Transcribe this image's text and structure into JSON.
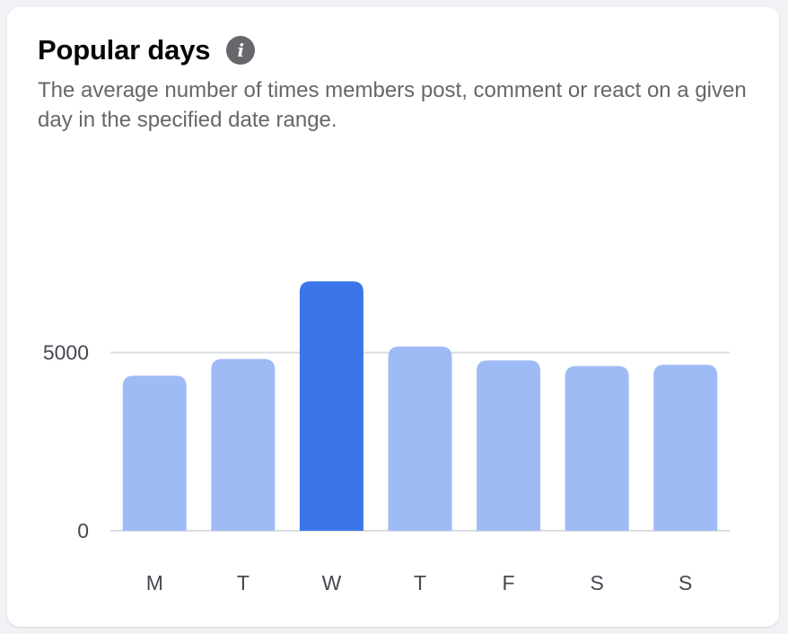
{
  "header": {
    "title": "Popular days",
    "info_icon": "info-icon",
    "subtitle": "The average number of times members post, comment or react on a given day in the specified date range."
  },
  "colors": {
    "bar": "#9ebbf5",
    "highlight": "#3b76e8",
    "gridline": "#dadde1",
    "text": "#444950"
  },
  "chart_data": {
    "type": "bar",
    "categories": [
      "M",
      "T",
      "W",
      "T",
      "F",
      "S",
      "S"
    ],
    "values": [
      4350,
      4820,
      7000,
      5170,
      4780,
      4620,
      4660
    ],
    "highlight_index": 2,
    "ylim": [
      0,
      7200
    ],
    "yticks": [
      0,
      5000
    ],
    "title": "",
    "xlabel": "",
    "ylabel": "",
    "grid": true
  }
}
